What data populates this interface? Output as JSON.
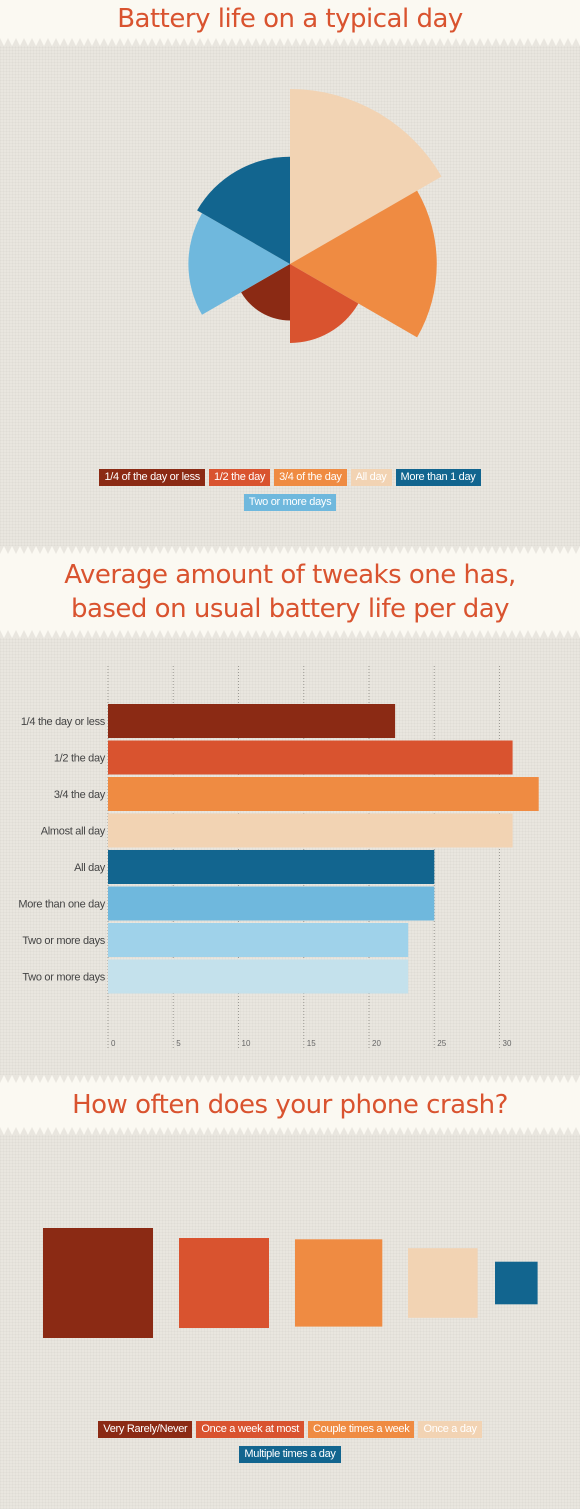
{
  "colors": {
    "dark_red": "#8b2a14",
    "red": "#d9532f",
    "orange": "#ef8b42",
    "peach": "#f2d3b3",
    "navy": "#12658f",
    "sky": "#6fb8dd",
    "light_sky": "#9fd2ea",
    "pale_sky": "#c4e1ec",
    "title": "#d9532f"
  },
  "chart_data": [
    {
      "type": "pie",
      "title": "Battery life on a typical day",
      "note": "polar area chart; wedge radius proportional to value",
      "categories": [
        "1/4 of the day or less",
        "1/2 the day",
        "3/4 of the day",
        "All day",
        "More than 1 day",
        "Two or more days"
      ],
      "values": [
        50,
        70,
        130,
        155,
        95,
        90
      ],
      "colors": [
        "#8b2a14",
        "#d9532f",
        "#ef8b42",
        "#f2d3b3",
        "#12658f",
        "#6fb8dd"
      ],
      "legend": "bottom-center"
    },
    {
      "type": "bar",
      "orientation": "horizontal",
      "title": "Average amount of tweaks one has, based on usual battery life per day",
      "categories": [
        "1/4 the day or less",
        "1/2 the day",
        "3/4 the day",
        "Almost all day",
        "All day",
        "More than one day",
        "Two or more days",
        "Two or more days"
      ],
      "values": [
        22,
        31,
        33,
        31,
        25,
        25,
        23,
        23
      ],
      "colors": [
        "#8b2a14",
        "#d9532f",
        "#ef8b42",
        "#f2d3b3",
        "#12658f",
        "#6fb8dd",
        "#9fd2ea",
        "#c4e1ec"
      ],
      "xticks": [
        "0",
        "5",
        "10",
        "15",
        "20",
        "25",
        "30"
      ],
      "xlim": [
        0,
        33
      ],
      "grid": true
    },
    {
      "type": "bar",
      "title": "How often does your phone crash?",
      "note": "squares; area proportional to value",
      "categories": [
        "Very Rarely/Never",
        "Once a week at most",
        "Couple times a week",
        "Once a day",
        "Multiple times a day"
      ],
      "values": [
        100,
        67,
        63,
        40,
        15
      ],
      "colors": [
        "#8b2a14",
        "#d9532f",
        "#ef8b42",
        "#f2d3b3",
        "#12658f"
      ],
      "legend": "bottom-center"
    }
  ]
}
